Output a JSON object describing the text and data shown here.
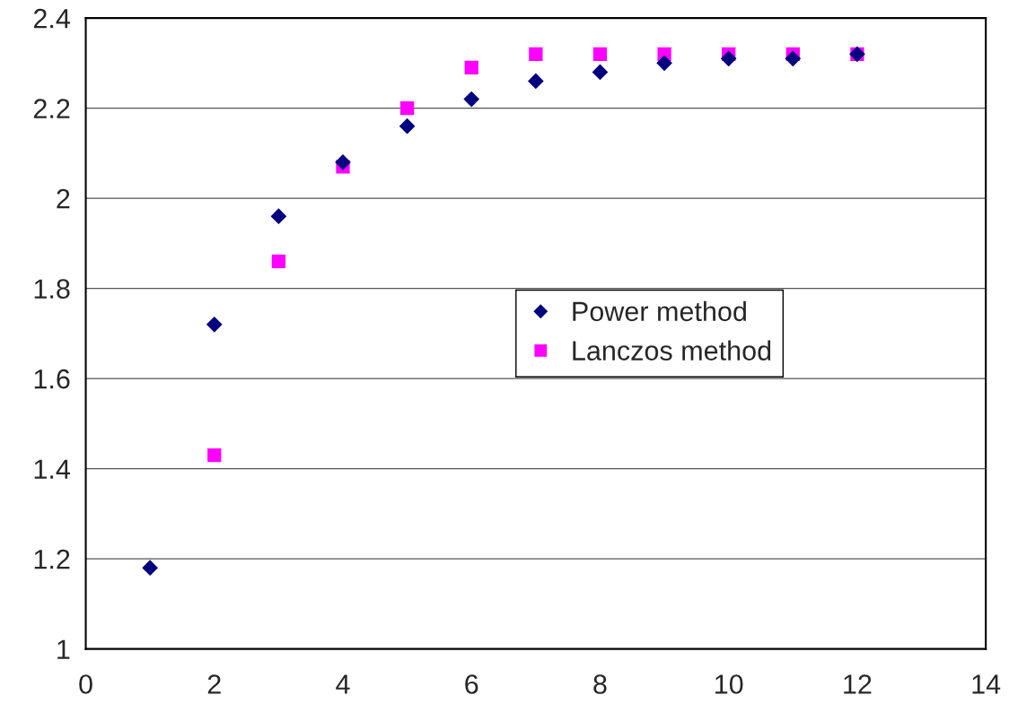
{
  "chart_data": {
    "type": "scatter",
    "x": [
      1,
      2,
      3,
      4,
      5,
      6,
      7,
      8,
      9,
      10,
      11,
      12
    ],
    "series": [
      {
        "name": "Power method",
        "color": "#000080",
        "marker": "diamond",
        "values": [
          1.18,
          1.72,
          1.96,
          2.08,
          2.16,
          2.22,
          2.26,
          2.28,
          2.3,
          2.31,
          2.31,
          2.32
        ]
      },
      {
        "name": "Lanczos method",
        "color": "#ff00ff",
        "marker": "square",
        "values": [
          null,
          1.43,
          1.86,
          2.07,
          2.2,
          2.29,
          2.32,
          2.32,
          2.32,
          2.32,
          2.32,
          2.32
        ]
      }
    ],
    "xlim": [
      0,
      14
    ],
    "xticks": [
      0,
      2,
      4,
      6,
      8,
      10,
      12,
      14
    ],
    "ylim": [
      1,
      2.4
    ],
    "yticks": [
      1,
      1.2,
      1.4,
      1.6,
      1.8,
      2,
      2.2,
      2.4
    ],
    "grid": "y",
    "legend": "center right"
  }
}
